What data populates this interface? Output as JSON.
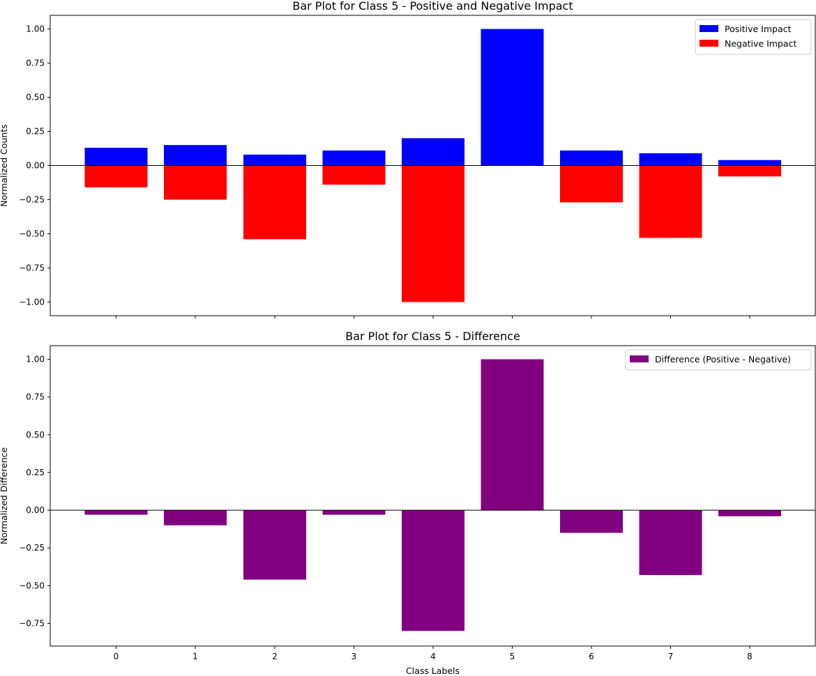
{
  "chart_data": [
    {
      "type": "bar",
      "title": "Bar Plot for Class 5 - Positive and Negative Impact",
      "xlabel": "",
      "ylabel": "Normalized Counts",
      "categories": [
        "0",
        "1",
        "2",
        "3",
        "4",
        "5",
        "6",
        "7",
        "8"
      ],
      "series": [
        {
          "name": "Positive Impact",
          "color": "#0000ff",
          "values": [
            0.13,
            0.15,
            0.08,
            0.11,
            0.2,
            1.0,
            0.11,
            0.09,
            0.04
          ]
        },
        {
          "name": "Negative Impact",
          "color": "#ff0000",
          "values": [
            -0.16,
            -0.25,
            -0.54,
            -0.14,
            -1.0,
            0.0,
            -0.27,
            -0.53,
            -0.08
          ]
        }
      ],
      "ylim": [
        -1.1,
        1.1
      ],
      "yticks": [
        1.0,
        0.75,
        0.5,
        0.25,
        0.0,
        -0.25,
        -0.5,
        -0.75,
        -1.0
      ],
      "ytick_labels": [
        "1.00",
        "0.75",
        "0.50",
        "0.25",
        "0.00",
        "−0.25",
        "−0.50",
        "−0.75",
        "−1.00"
      ],
      "show_xtick_labels": false,
      "zero_line": true,
      "legend_position": "top-right",
      "grid": false
    },
    {
      "type": "bar",
      "title": "Bar Plot for Class 5 - Difference",
      "xlabel": "Class Labels",
      "ylabel": "Normalized Difference",
      "categories": [
        "0",
        "1",
        "2",
        "3",
        "4",
        "5",
        "6",
        "7",
        "8"
      ],
      "series": [
        {
          "name": "Difference (Positive - Negative)",
          "color": "#800080",
          "values": [
            -0.03,
            -0.1,
            -0.46,
            -0.03,
            -0.8,
            1.0,
            -0.15,
            -0.43,
            -0.04
          ]
        }
      ],
      "ylim": [
        -0.9,
        1.09
      ],
      "yticks": [
        1.0,
        0.75,
        0.5,
        0.25,
        0.0,
        -0.25,
        -0.5,
        -0.75
      ],
      "ytick_labels": [
        "1.00",
        "0.75",
        "0.50",
        "0.25",
        "0.00",
        "−0.25",
        "−0.50",
        "−0.75"
      ],
      "show_xtick_labels": true,
      "zero_line": true,
      "legend_position": "top-right",
      "grid": false
    }
  ]
}
